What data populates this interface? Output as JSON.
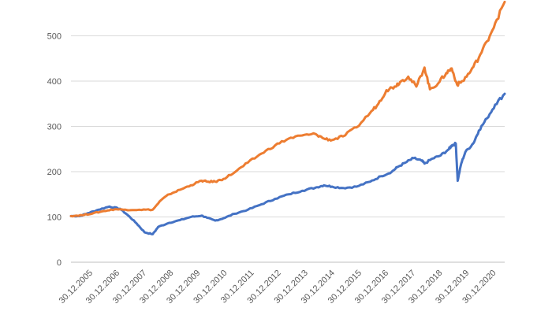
{
  "chart_data": {
    "type": "line",
    "title": "",
    "xlabel": "",
    "ylabel": "",
    "ylim": [
      0,
      600
    ],
    "y_ticks": [
      0,
      100,
      200,
      300,
      400,
      500
    ],
    "x_tick_labels": [
      "30.12.2005",
      "30.12.2006",
      "30.12.2007",
      "30.12.2008",
      "30.12.2009",
      "30.12.2010",
      "30.12.2011",
      "30.12.2012",
      "30.12.2013",
      "30.12.2014",
      "30.12.2015",
      "30.12.2016",
      "30.12.2017",
      "30.12.2018",
      "30.12.2019",
      "30.12.2020"
    ],
    "x_range": [
      2005.99,
      2021.95
    ],
    "grid": true,
    "legend": "none",
    "series": [
      {
        "color": "#4472c4",
        "x": [
          2005.99,
          2006.3,
          2006.6,
          2007.0,
          2007.4,
          2007.8,
          2008.1,
          2008.4,
          2008.7,
          2009.0,
          2009.2,
          2009.6,
          2010.0,
          2010.4,
          2010.8,
          2011.0,
          2011.3,
          2011.6,
          2012.0,
          2012.5,
          2013.0,
          2013.5,
          2014.0,
          2014.5,
          2015.0,
          2015.3,
          2015.6,
          2016.0,
          2016.5,
          2017.0,
          2017.4,
          2017.8,
          2018.0,
          2018.3,
          2018.6,
          2018.9,
          2019.0,
          2019.3,
          2019.6,
          2019.9,
          2020.0,
          2020.15,
          2020.22,
          2020.35,
          2020.5,
          2020.8,
          2021.0,
          2021.3,
          2021.6,
          2021.95
        ],
        "y": [
          102,
          102,
          108,
          116,
          123,
          118,
          103,
          86,
          66,
          62,
          78,
          87,
          93,
          100,
          103,
          98,
          92,
          97,
          107,
          116,
          128,
          140,
          150,
          158,
          165,
          170,
          167,
          164,
          167,
          178,
          190,
          200,
          210,
          220,
          230,
          224,
          218,
          229,
          236,
          250,
          258,
          262,
          180,
          218,
          243,
          263,
          291,
          318,
          348,
          372
        ]
      },
      {
        "color": "#ed7d31",
        "x": [
          2005.99,
          2006.4,
          2006.8,
          2007.2,
          2007.6,
          2008.0,
          2008.5,
          2009.0,
          2009.3,
          2009.6,
          2010.0,
          2010.4,
          2010.8,
          2011.0,
          2011.3,
          2011.6,
          2012.0,
          2012.5,
          2013.0,
          2013.5,
          2014.0,
          2014.5,
          2015.0,
          2015.3,
          2015.6,
          2016.0,
          2016.5,
          2017.0,
          2017.3,
          2017.6,
          2017.9,
          2018.1,
          2018.4,
          2018.7,
          2019.0,
          2019.2,
          2019.5,
          2019.8,
          2020.0,
          2020.2,
          2020.4,
          2020.7,
          2021.0,
          2021.3,
          2021.6,
          2021.95
        ],
        "y": [
          102,
          104,
          108,
          113,
          117,
          116,
          116,
          116,
          137,
          150,
          160,
          170,
          180,
          178,
          178,
          184,
          198,
          220,
          240,
          258,
          273,
          280,
          283,
          273,
          270,
          278,
          298,
          330,
          350,
          380,
          388,
          398,
          410,
          388,
          430,
          382,
          395,
          418,
          428,
          392,
          400,
          422,
          452,
          488,
          528,
          575
        ]
      }
    ]
  }
}
